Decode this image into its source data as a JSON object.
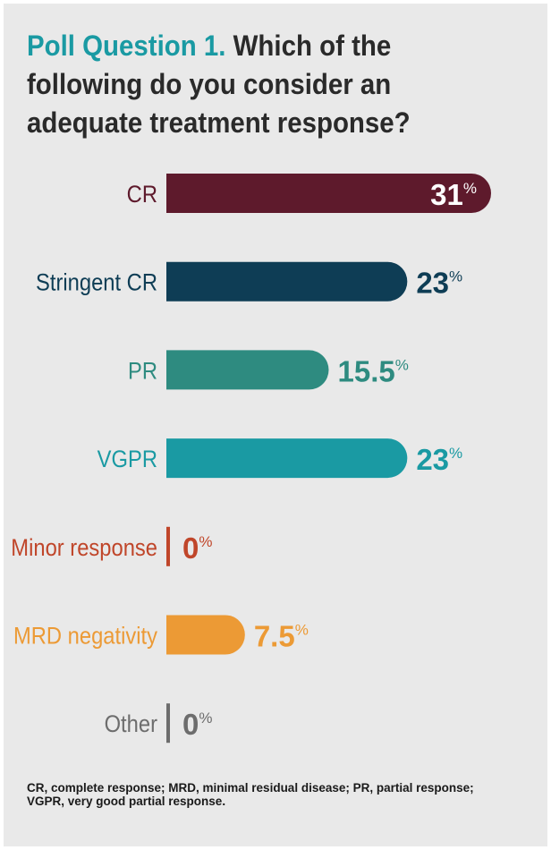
{
  "title": {
    "lead": "Poll Question 1.",
    "text": "Which of the following do you consider an adequate treatment response?"
  },
  "chart_data": {
    "type": "bar",
    "orientation": "horizontal",
    "unit": "%",
    "categories": [
      "CR",
      "Stringent CR",
      "PR",
      "VGPR",
      "Minor response",
      "MRD negativity",
      "Other"
    ],
    "values": [
      31,
      23,
      15.5,
      23,
      0,
      7.5,
      0
    ],
    "value_labels": [
      "31",
      "23",
      "15.5",
      "23",
      "0",
      "7.5",
      "0"
    ],
    "colors": [
      "#5e1a2c",
      "#0e3d55",
      "#2e8b80",
      "#1a9aa3",
      "#c0462a",
      "#ec9a35",
      "#6d6d6d"
    ],
    "xlim": [
      0,
      31
    ],
    "grid": false,
    "legend": "none"
  },
  "footnote": "CR, complete response; MRD, minimal residual disease; PR, partial response; VGPR, very good partial response."
}
